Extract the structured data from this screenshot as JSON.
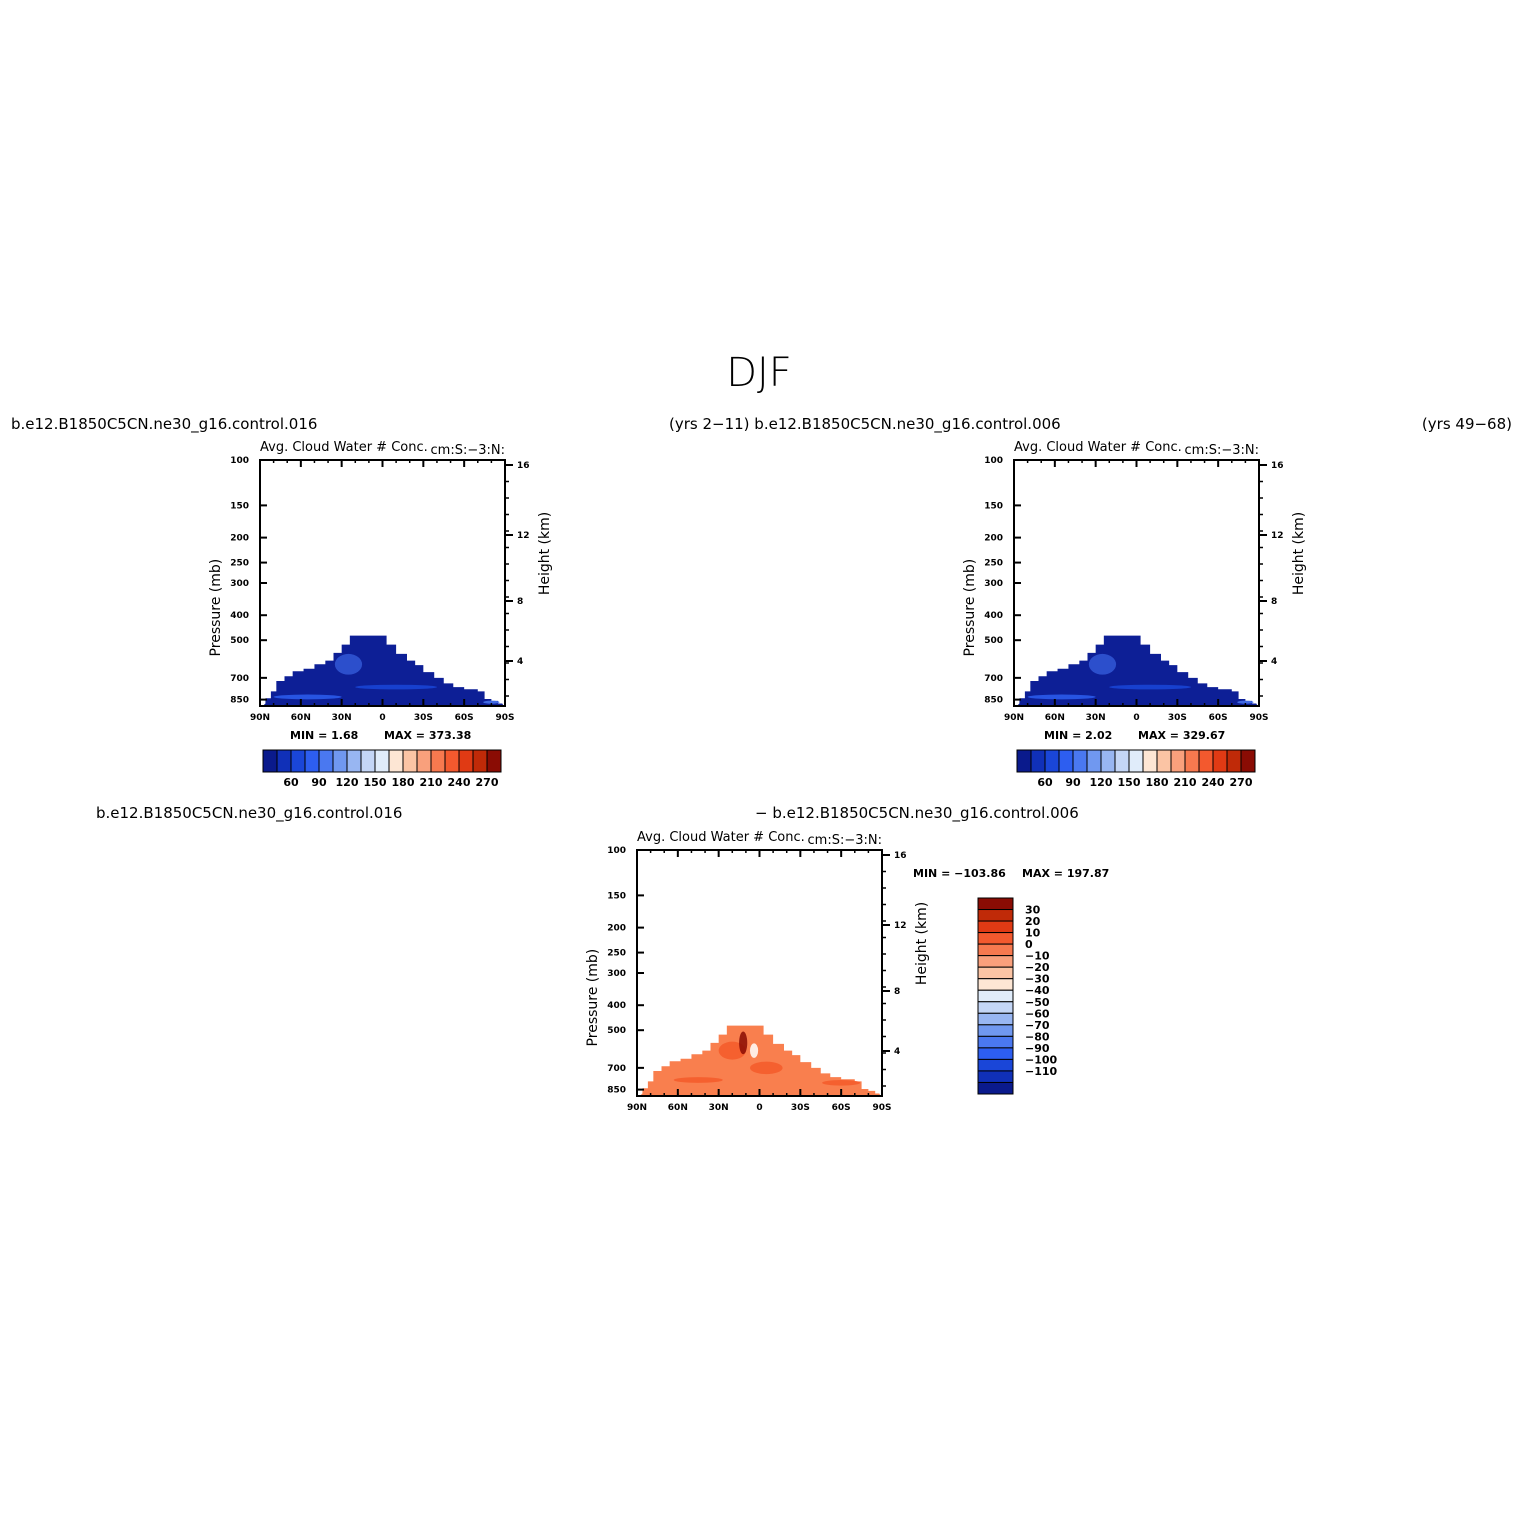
{
  "title": "DJF",
  "colors": {
    "blues": [
      "#0a1a8c",
      "#1030b8",
      "#1a46d8",
      "#2d5ef0",
      "#4a78f0",
      "#7098f0",
      "#98b6f2",
      "#c4d6f6",
      "#e0ecfa"
    ],
    "reds": [
      "#fde6d4",
      "#fbc4a4",
      "#f9a07c",
      "#f7794f",
      "#f3592e",
      "#e03a14",
      "#c02a08",
      "#8a0c04"
    ],
    "diff_fill": "#f97f4e",
    "diff_dark": "#f45a2a",
    "abs_fill": "#0d1f96",
    "abs_light": "#3258d6"
  },
  "headers": {
    "left": "b.e12.B1850C5CN.ne30_g16.control.016",
    "center": "(yrs 2−11) b.e12.B1850C5CN.ne30_g16.control.006",
    "right": "(yrs 49−68)",
    "bottom_left": "b.e12.B1850C5CN.ne30_g16.control.016",
    "bottom_center": "− b.e12.B1850C5CN.ne30_g16.control.006"
  },
  "chart_data": [
    {
      "type": "contour",
      "panel": "top-left",
      "title": "Avg. Cloud Water # Conc.",
      "units": "cm:S:−3:N:",
      "xlabel": "",
      "ylabel": "Pressure (mb)",
      "ylabel_right": "Height (km)",
      "x_ticks": [
        "90N",
        "60N",
        "30N",
        "0",
        "30S",
        "60S",
        "90S"
      ],
      "x_range": [
        90,
        -90
      ],
      "y_ticks": [
        100,
        150,
        200,
        250,
        300,
        400,
        500,
        700,
        850
      ],
      "y_range": [
        100,
        900
      ],
      "height_ticks": [
        16,
        12,
        8,
        4
      ],
      "min_label": "MIN =    1.68",
      "max_label": "MAX = 373.38",
      "colorbar": {
        "orientation": "horizontal",
        "labels": [
          "60",
          "90",
          "120",
          "150",
          "180",
          "210",
          "240",
          "270"
        ]
      }
    },
    {
      "type": "contour",
      "panel": "top-right",
      "title": "Avg. Cloud Water # Conc.",
      "units": "cm:S:−3:N:",
      "xlabel": "",
      "ylabel": "Pressure (mb)",
      "ylabel_right": "Height (km)",
      "x_ticks": [
        "90N",
        "60N",
        "30N",
        "0",
        "30S",
        "60S",
        "90S"
      ],
      "x_range": [
        90,
        -90
      ],
      "y_ticks": [
        100,
        150,
        200,
        250,
        300,
        400,
        500,
        700,
        850
      ],
      "y_range": [
        100,
        900
      ],
      "height_ticks": [
        16,
        12,
        8,
        4
      ],
      "min_label": "MIN =    2.02",
      "max_label": "MAX = 329.67",
      "colorbar": {
        "orientation": "horizontal",
        "labels": [
          "60",
          "90",
          "120",
          "150",
          "180",
          "210",
          "240",
          "270"
        ]
      }
    },
    {
      "type": "contour",
      "panel": "bottom-difference",
      "title": "Avg. Cloud Water # Conc.",
      "units": "cm:S:−3:N:",
      "xlabel": "",
      "ylabel": "Pressure (mb)",
      "ylabel_right": "Height (km)",
      "x_ticks": [
        "90N",
        "60N",
        "30N",
        "0",
        "30S",
        "60S",
        "90S"
      ],
      "x_range": [
        90,
        -90
      ],
      "y_ticks": [
        100,
        150,
        200,
        250,
        300,
        400,
        500,
        700,
        850
      ],
      "y_range": [
        100,
        900
      ],
      "height_ticks": [
        16,
        12,
        8,
        4
      ],
      "min_label": "MIN = −103.86",
      "max_label": "MAX = 197.87",
      "colorbar": {
        "orientation": "vertical",
        "labels": [
          "30",
          "20",
          "10",
          "0",
          "−10",
          "−20",
          "−30",
          "−40",
          "−50",
          "−60",
          "−70",
          "−80",
          "−90",
          "−100",
          "−110"
        ]
      }
    }
  ]
}
